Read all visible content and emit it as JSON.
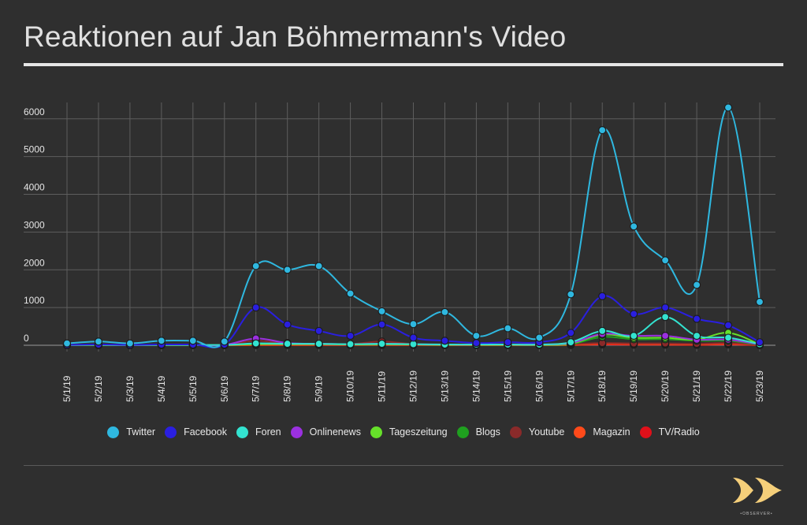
{
  "title": "Reaktionen auf Jan Böhmermann's Video",
  "logo": {
    "icon": "double-chevron-logo-icon",
    "text": "•OBSERVER•"
  },
  "chart_data": {
    "type": "line",
    "title": "Reaktionen auf Jan Böhmermann's Video",
    "xlabel": "",
    "ylabel": "",
    "ylim": [
      0,
      6500
    ],
    "yticks": [
      0,
      1000,
      2000,
      3000,
      4000,
      5000,
      6000
    ],
    "grid": true,
    "legend_position": "bottom",
    "categories": [
      "5/1/19",
      "5/2/19",
      "5/3/19",
      "5/4/19",
      "5/5/19",
      "5/6/19",
      "5/7/19",
      "5/8/19",
      "5/9/19",
      "5/10/19",
      "5/11/19",
      "5/12/19",
      "5/13/19",
      "5/14/19",
      "5/15/19",
      "5/16/19",
      "5/17/19",
      "5/18/19",
      "5/19/19",
      "5/20/19",
      "5/21/19",
      "5/22/19",
      "5/23/19"
    ],
    "series": [
      {
        "name": "Twitter",
        "color": "#2fb8e0",
        "values": [
          50,
          100,
          50,
          120,
          120,
          100,
          2100,
          2000,
          2100,
          1370,
          900,
          560,
          880,
          250,
          450,
          200,
          1350,
          5700,
          3150,
          2250,
          1600,
          6300,
          1150
        ]
      },
      {
        "name": "Facebook",
        "color": "#2a1fe0",
        "values": [
          10,
          20,
          10,
          20,
          20,
          20,
          1000,
          550,
          380,
          250,
          550,
          200,
          120,
          60,
          80,
          80,
          330,
          1300,
          830,
          1000,
          700,
          530,
          80
        ]
      },
      {
        "name": "Foren",
        "color": "#33e3d0",
        "values": [
          5,
          10,
          5,
          10,
          10,
          10,
          50,
          40,
          40,
          30,
          40,
          30,
          20,
          20,
          20,
          20,
          80,
          380,
          250,
          750,
          250,
          200,
          30
        ]
      },
      {
        "name": "Onlinenews",
        "color": "#9b30e0",
        "values": [
          5,
          10,
          5,
          10,
          10,
          10,
          180,
          60,
          40,
          30,
          40,
          30,
          20,
          20,
          20,
          20,
          60,
          300,
          250,
          250,
          150,
          150,
          20
        ]
      },
      {
        "name": "Tageszeitung",
        "color": "#66e02a",
        "values": [
          2,
          5,
          2,
          5,
          5,
          5,
          30,
          30,
          30,
          20,
          20,
          20,
          10,
          10,
          10,
          10,
          40,
          280,
          200,
          200,
          150,
          330,
          20
        ]
      },
      {
        "name": "Blogs",
        "color": "#1fa01f",
        "values": [
          2,
          5,
          2,
          5,
          5,
          5,
          30,
          30,
          30,
          20,
          20,
          20,
          10,
          10,
          10,
          10,
          30,
          220,
          160,
          160,
          120,
          120,
          10
        ]
      },
      {
        "name": "Youtube",
        "color": "#8a2a2a",
        "values": [
          2,
          5,
          2,
          5,
          5,
          5,
          120,
          40,
          40,
          30,
          100,
          30,
          20,
          20,
          20,
          20,
          30,
          60,
          50,
          50,
          40,
          60,
          10
        ]
      },
      {
        "name": "Magazin",
        "color": "#ff4a1a",
        "values": [
          1,
          2,
          1,
          2,
          2,
          2,
          10,
          10,
          10,
          10,
          10,
          10,
          5,
          5,
          5,
          5,
          10,
          40,
          30,
          30,
          20,
          40,
          5
        ]
      },
      {
        "name": "TV/Radio",
        "color": "#e0101a",
        "values": [
          1,
          1,
          1,
          1,
          1,
          1,
          5,
          5,
          5,
          5,
          5,
          5,
          2,
          2,
          2,
          2,
          5,
          20,
          15,
          15,
          10,
          20,
          2
        ]
      }
    ]
  }
}
